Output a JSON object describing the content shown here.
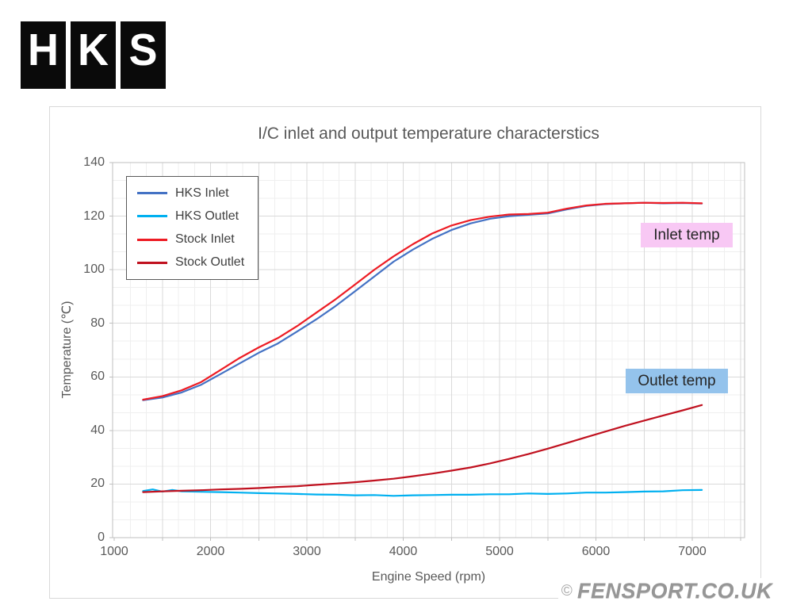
{
  "logo": {
    "letters": [
      "H",
      "K",
      "S"
    ]
  },
  "watermark": {
    "copyright": "©",
    "text": "FENSPORT.CO.UK"
  },
  "chart_data": {
    "type": "line",
    "title": "I/C inlet and output temperature characterstics",
    "xlabel": "Engine Speed (rpm)",
    "ylabel": "Temperature (℃)",
    "xlim": [
      1000,
      7500
    ],
    "ylim": [
      0,
      140
    ],
    "xticks": [
      1000,
      2000,
      3000,
      4000,
      5000,
      6000,
      7000
    ],
    "yticks": [
      0,
      20,
      40,
      60,
      80,
      100,
      120,
      140
    ],
    "grid": {
      "x_major_step": 500,
      "x_minor_step": 166.667,
      "y_major_step": 20,
      "y_minor_step": 6.667
    },
    "legend_position": "top-left",
    "colors": {
      "minor_grid": "#efefef",
      "major_grid": "#dadada",
      "plot_border": "#bfbfbf",
      "text": "#595959"
    },
    "series": [
      {
        "name": "HKS Inlet",
        "color": "#4472c4",
        "points": [
          [
            1300,
            51.3
          ],
          [
            1500,
            52.3
          ],
          [
            1700,
            54.2
          ],
          [
            1900,
            57.0
          ],
          [
            2100,
            61.0
          ],
          [
            2300,
            65.0
          ],
          [
            2500,
            69.0
          ],
          [
            2700,
            72.5
          ],
          [
            2900,
            77.0
          ],
          [
            3100,
            81.5
          ],
          [
            3300,
            86.5
          ],
          [
            3500,
            92.0
          ],
          [
            3700,
            97.5
          ],
          [
            3900,
            103.0
          ],
          [
            4100,
            107.5
          ],
          [
            4300,
            111.5
          ],
          [
            4500,
            114.8
          ],
          [
            4700,
            117.3
          ],
          [
            4900,
            119.0
          ],
          [
            5100,
            120.0
          ],
          [
            5300,
            120.5
          ],
          [
            5500,
            121.0
          ],
          [
            5700,
            122.5
          ],
          [
            5900,
            123.8
          ],
          [
            6100,
            124.5
          ],
          [
            6300,
            124.8
          ],
          [
            6500,
            125.0
          ],
          [
            6700,
            124.8
          ],
          [
            6900,
            124.9
          ],
          [
            7100,
            124.7
          ]
        ]
      },
      {
        "name": "HKS Outlet",
        "color": "#00b0f0",
        "points": [
          [
            1300,
            17.4
          ],
          [
            1400,
            18.0
          ],
          [
            1500,
            17.2
          ],
          [
            1600,
            17.8
          ],
          [
            1700,
            17.3
          ],
          [
            1900,
            17.1
          ],
          [
            2100,
            17.0
          ],
          [
            2300,
            16.8
          ],
          [
            2500,
            16.6
          ],
          [
            2700,
            16.5
          ],
          [
            2900,
            16.3
          ],
          [
            3100,
            16.1
          ],
          [
            3300,
            16.0
          ],
          [
            3500,
            15.8
          ],
          [
            3700,
            15.9
          ],
          [
            3900,
            15.6
          ],
          [
            4100,
            15.8
          ],
          [
            4300,
            15.9
          ],
          [
            4500,
            16.0
          ],
          [
            4700,
            16.0
          ],
          [
            4900,
            16.2
          ],
          [
            5100,
            16.2
          ],
          [
            5300,
            16.5
          ],
          [
            5500,
            16.3
          ],
          [
            5700,
            16.5
          ],
          [
            5900,
            16.8
          ],
          [
            6100,
            16.8
          ],
          [
            6300,
            17.0
          ],
          [
            6500,
            17.2
          ],
          [
            6700,
            17.3
          ],
          [
            6900,
            17.7
          ],
          [
            7100,
            17.8
          ]
        ]
      },
      {
        "name": "Stock Inlet",
        "color": "#ed1c24",
        "points": [
          [
            1300,
            51.5
          ],
          [
            1500,
            52.8
          ],
          [
            1700,
            55.0
          ],
          [
            1900,
            58.0
          ],
          [
            2100,
            62.5
          ],
          [
            2300,
            67.0
          ],
          [
            2500,
            71.0
          ],
          [
            2700,
            74.5
          ],
          [
            2900,
            79.0
          ],
          [
            3100,
            84.0
          ],
          [
            3300,
            89.0
          ],
          [
            3500,
            94.5
          ],
          [
            3700,
            100.0
          ],
          [
            3900,
            105.0
          ],
          [
            4100,
            109.5
          ],
          [
            4300,
            113.5
          ],
          [
            4500,
            116.5
          ],
          [
            4700,
            118.5
          ],
          [
            4900,
            119.8
          ],
          [
            5100,
            120.6
          ],
          [
            5300,
            120.8
          ],
          [
            5500,
            121.3
          ],
          [
            5700,
            122.8
          ],
          [
            5900,
            124.0
          ],
          [
            6100,
            124.6
          ],
          [
            6300,
            124.8
          ],
          [
            6500,
            125.0
          ],
          [
            6700,
            124.9
          ],
          [
            6900,
            125.0
          ],
          [
            7100,
            124.8
          ]
        ]
      },
      {
        "name": "Stock Outlet",
        "color": "#c0111f",
        "points": [
          [
            1300,
            17.0
          ],
          [
            1500,
            17.3
          ],
          [
            1700,
            17.5
          ],
          [
            1900,
            17.7
          ],
          [
            2100,
            18.0
          ],
          [
            2300,
            18.2
          ],
          [
            2500,
            18.5
          ],
          [
            2700,
            18.9
          ],
          [
            2900,
            19.2
          ],
          [
            3100,
            19.7
          ],
          [
            3300,
            20.2
          ],
          [
            3500,
            20.7
          ],
          [
            3700,
            21.3
          ],
          [
            3900,
            22.0
          ],
          [
            4100,
            22.9
          ],
          [
            4300,
            23.9
          ],
          [
            4500,
            25.0
          ],
          [
            4700,
            26.2
          ],
          [
            4900,
            27.7
          ],
          [
            5100,
            29.4
          ],
          [
            5300,
            31.2
          ],
          [
            5500,
            33.2
          ],
          [
            5700,
            35.3
          ],
          [
            5900,
            37.5
          ],
          [
            6100,
            39.6
          ],
          [
            6300,
            41.7
          ],
          [
            6500,
            43.7
          ],
          [
            6700,
            45.6
          ],
          [
            6900,
            47.5
          ],
          [
            7100,
            49.5
          ]
        ]
      }
    ],
    "annotations": [
      {
        "text": "Inlet temp",
        "bg": "#f8c8f4"
      },
      {
        "text": "Outlet temp",
        "bg": "#94c3ec"
      }
    ]
  }
}
